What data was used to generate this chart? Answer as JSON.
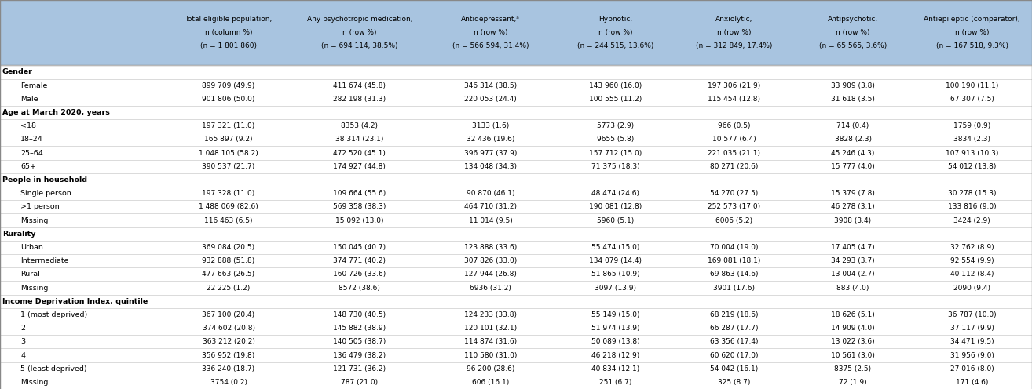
{
  "header_bg": "#a8c4e0",
  "header_text_color": "#000000",
  "body_bg": "#ffffff",
  "body_text_color": "#000000",
  "col_headers": [
    "Total eligible population,\nn (column %)\n(n = 1 801 860)",
    "Any psychotropic medication,\nn (row %)\n(n = 694 114, 38.5%)",
    "Antidepressant,ᵃ\nn (row %)\n(n = 566 594, 31.4%)",
    "Hypnotic,\nn (row %)\n(n = 244 515, 13.6%)",
    "Anxiolytic,\nn (row %)\n(n = 312 849, 17.4%)",
    "Antipsychotic,\nn (row %)\n(n = 65 565, 3.6%)",
    "Antiepileptic (comparator),\nn (row %)\n(n = 167 518, 9.3%)"
  ],
  "row_labels": [
    "Gender",
    "Female",
    "Male",
    "Age at March 2020, years",
    "<18",
    "18–24",
    "25–64",
    "65+",
    "People in household",
    "Single person",
    ">1 person",
    "Missing",
    "Rurality",
    "Urban",
    "Intermediate",
    "Rural",
    "Missing",
    "Income Deprivation Index, quintile",
    "1 (most deprived)",
    "2",
    "3",
    "4",
    "5 (least deprived)",
    "Missing"
  ],
  "is_header_row": [
    true,
    false,
    false,
    true,
    false,
    false,
    false,
    false,
    true,
    false,
    false,
    false,
    true,
    false,
    false,
    false,
    false,
    true,
    false,
    false,
    false,
    false,
    false,
    false
  ],
  "col0": [
    "",
    "899 709 (49.9)",
    "901 806 (50.0)",
    "",
    "197 321 (11.0)",
    "165 897 (9.2)",
    "1 048 105 (58.2)",
    "390 537 (21.7)",
    "",
    "197 328 (11.0)",
    "1 488 069 (82.6)",
    "116 463 (6.5)",
    "",
    "369 084 (20.5)",
    "932 888 (51.8)",
    "477 663 (26.5)",
    "22 225 (1.2)",
    "",
    "367 100 (20.4)",
    "374 602 (20.8)",
    "363 212 (20.2)",
    "356 952 (19.8)",
    "336 240 (18.7)",
    "3754 (0.2)"
  ],
  "col1": [
    "",
    "411 674 (45.8)",
    "282 198 (31.3)",
    "",
    "8353 (4.2)",
    "38 314 (23.1)",
    "472 520 (45.1)",
    "174 927 (44.8)",
    "",
    "109 664 (55.6)",
    "569 358 (38.3)",
    "15 092 (13.0)",
    "",
    "150 045 (40.7)",
    "374 771 (40.2)",
    "160 726 (33.6)",
    "8572 (38.6)",
    "",
    "148 730 (40.5)",
    "145 882 (38.9)",
    "140 505 (38.7)",
    "136 479 (38.2)",
    "121 731 (36.2)",
    "787 (21.0)"
  ],
  "col2": [
    "",
    "346 314 (38.5)",
    "220 053 (24.4)",
    "",
    "3133 (1.6)",
    "32 436 (19.6)",
    "396 977 (37.9)",
    "134 048 (34.3)",
    "",
    "90 870 (46.1)",
    "464 710 (31.2)",
    "11 014 (9.5)",
    "",
    "123 888 (33.6)",
    "307 826 (33.0)",
    "127 944 (26.8)",
    "6936 (31.2)",
    "",
    "124 233 (33.8)",
    "120 101 (32.1)",
    "114 874 (31.6)",
    "110 580 (31.0)",
    "96 200 (28.6)",
    "606 (16.1)"
  ],
  "col3": [
    "",
    "143 960 (16.0)",
    "100 555 (11.2)",
    "",
    "5773 (2.9)",
    "9655 (5.8)",
    "157 712 (15.0)",
    "71 375 (18.3)",
    "",
    "48 474 (24.6)",
    "190 081 (12.8)",
    "5960 (5.1)",
    "",
    "55 474 (15.0)",
    "134 079 (14.4)",
    "51 865 (10.9)",
    "3097 (13.9)",
    "",
    "55 149 (15.0)",
    "51 974 (13.9)",
    "50 089 (13.8)",
    "46 218 (12.9)",
    "40 834 (12.1)",
    "251 (6.7)"
  ],
  "col4": [
    "",
    "197 306 (21.9)",
    "115 454 (12.8)",
    "",
    "966 (0.5)",
    "10 577 (6.4)",
    "221 035 (21.1)",
    "80 271 (20.6)",
    "",
    "54 270 (27.5)",
    "252 573 (17.0)",
    "6006 (5.2)",
    "",
    "70 004 (19.0)",
    "169 081 (18.1)",
    "69 863 (14.6)",
    "3901 (17.6)",
    "",
    "68 219 (18.6)",
    "66 287 (17.7)",
    "63 356 (17.4)",
    "60 620 (17.0)",
    "54 042 (16.1)",
    "325 (8.7)"
  ],
  "col5": [
    "",
    "33 909 (3.8)",
    "31 618 (3.5)",
    "",
    "714 (0.4)",
    "3828 (2.3)",
    "45 246 (4.3)",
    "15 777 (4.0)",
    "",
    "15 379 (7.8)",
    "46 278 (3.1)",
    "3908 (3.4)",
    "",
    "17 405 (4.7)",
    "34 293 (3.7)",
    "13 004 (2.7)",
    "883 (4.0)",
    "",
    "18 626 (5.1)",
    "14 909 (4.0)",
    "13 022 (3.6)",
    "10 561 (3.0)",
    "8375 (2.5)",
    "72 (1.9)"
  ],
  "col6": [
    "",
    "100 190 (11.1)",
    "67 307 (7.5)",
    "",
    "1759 (0.9)",
    "3834 (2.3)",
    "107 913 (10.3)",
    "54 012 (13.8)",
    "",
    "30 278 (15.3)",
    "133 816 (9.0)",
    "3424 (2.9)",
    "",
    "32 762 (8.9)",
    "92 554 (9.9)",
    "40 112 (8.4)",
    "2090 (9.4)",
    "",
    "36 787 (10.0)",
    "37 117 (9.9)",
    "34 471 (9.5)",
    "31 956 (9.0)",
    "27 016 (8.0)",
    "171 (4.6)"
  ]
}
